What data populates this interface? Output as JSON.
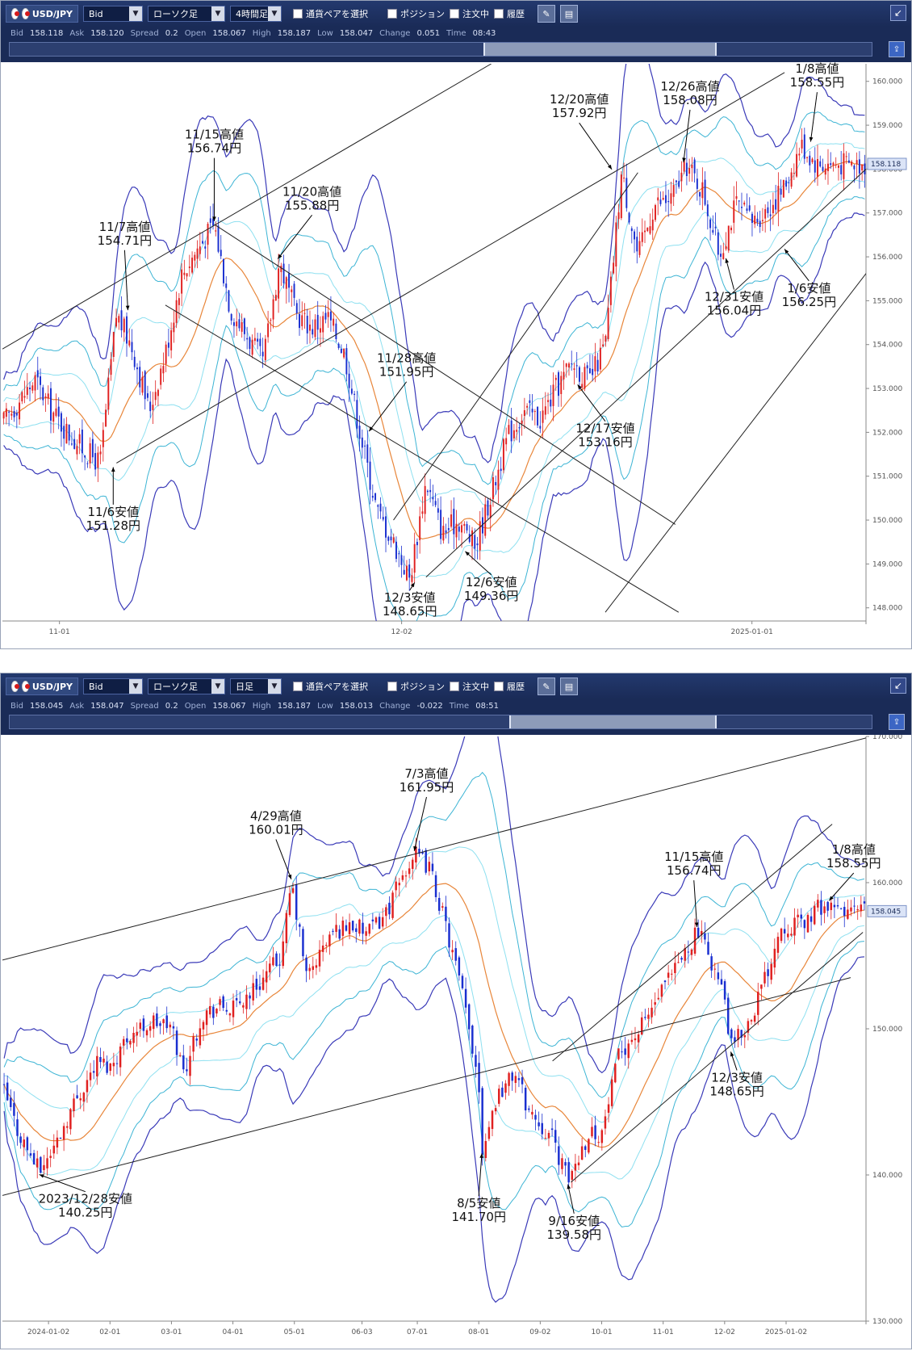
{
  "top": {
    "toolbar": {
      "symbol": "USD/JPY",
      "price_type": "Bid",
      "chart_type": "ローソク足",
      "timeframe": "4時間足",
      "pair_select": "通貨ペアを選択",
      "positions": "ポジション",
      "orders": "注文中",
      "history": "履歴"
    },
    "quote": {
      "bid_label": "Bid",
      "bid": "158.118",
      "ask_label": "Ask",
      "ask": "158.120",
      "spread_label": "Spread",
      "spread": "0.2",
      "open_label": "Open",
      "open": "158.067",
      "high_label": "High",
      "high": "158.187",
      "low_label": "Low",
      "low": "158.047",
      "change_label": "Change",
      "change": "0.051",
      "time_label": "Time",
      "time": "08:43"
    },
    "nav_window": [
      0.55,
      0.82
    ],
    "current_price": "158.118"
  },
  "bottom": {
    "toolbar": {
      "symbol": "USD/JPY",
      "price_type": "Bid",
      "chart_type": "ローソク足",
      "timeframe": "日足",
      "pair_select": "通貨ペアを選択",
      "positions": "ポジション",
      "orders": "注文中",
      "history": "履歴"
    },
    "quote": {
      "bid_label": "Bid",
      "bid": "158.045",
      "ask_label": "Ask",
      "ask": "158.047",
      "spread_label": "Spread",
      "spread": "0.2",
      "open_label": "Open",
      "open": "158.067",
      "high_label": "High",
      "high": "158.187",
      "low_label": "Low",
      "low": "158.013",
      "change_label": "Change",
      "change": "-0.022",
      "time_label": "Time",
      "time": "08:51"
    },
    "nav_window": [
      0.58,
      0.82
    ],
    "current_price": "158.045"
  },
  "colors": {
    "bull": "#e02020",
    "bear": "#1a2fd0",
    "band_outer": "#3a3ab8",
    "band_mid": "#3cb4d4",
    "band_inner": "#8ee0f0",
    "ma": "#e8863a",
    "trendline": "#222222"
  },
  "chart_data": [
    {
      "type": "candlestick",
      "timeframe": "4時間足",
      "ylim": [
        147.7,
        160.4
      ],
      "yticks": [
        "160.000",
        "159.000",
        "158.000",
        "157.000",
        "156.000",
        "155.000",
        "154.000",
        "153.000",
        "152.000",
        "151.000",
        "150.000",
        "149.000",
        "148.000"
      ],
      "xticks": [
        {
          "label": "11-01",
          "x": 3.5
        },
        {
          "label": "12-02",
          "x": 24.5
        },
        {
          "label": "2025-01-01",
          "x": 46
        }
      ],
      "x_range": [
        0,
        53
      ],
      "path": [
        [
          0,
          152.2
        ],
        [
          2,
          153.2
        ],
        [
          3,
          152.5
        ],
        [
          4,
          152.0
        ],
        [
          5,
          151.6
        ],
        [
          6,
          151.3
        ],
        [
          7,
          154.7
        ],
        [
          8,
          153.9
        ],
        [
          9,
          152.5
        ],
        [
          10,
          153.8
        ],
        [
          11,
          155.6
        ],
        [
          12,
          156.2
        ],
        [
          13,
          156.74
        ],
        [
          14,
          154.8
        ],
        [
          15,
          154.2
        ],
        [
          16,
          153.6
        ],
        [
          17,
          155.88
        ],
        [
          18,
          154.7
        ],
        [
          19,
          154.4
        ],
        [
          20,
          154.6
        ],
        [
          21,
          153.8
        ],
        [
          22,
          151.9
        ],
        [
          23,
          150.2
        ],
        [
          24,
          149.5
        ],
        [
          25,
          148.65
        ],
        [
          26,
          150.9
        ],
        [
          27,
          149.7
        ],
        [
          28,
          150.0
        ],
        [
          29,
          149.4
        ],
        [
          30,
          150.6
        ],
        [
          31,
          151.9
        ],
        [
          32,
          152.5
        ],
        [
          33,
          152.3
        ],
        [
          34,
          153.0
        ],
        [
          35,
          153.6
        ],
        [
          36,
          153.16
        ],
        [
          37,
          154.0
        ],
        [
          38,
          157.92
        ],
        [
          39,
          156.0
        ],
        [
          40,
          157.2
        ],
        [
          41,
          157.3
        ],
        [
          42,
          158.08
        ],
        [
          43,
          157.5
        ],
        [
          44,
          156.04
        ],
        [
          45,
          157.2
        ],
        [
          46,
          156.8
        ],
        [
          47,
          157.1
        ],
        [
          48,
          157.6
        ],
        [
          49,
          158.55
        ],
        [
          50,
          158.1
        ],
        [
          51,
          158.118
        ]
      ],
      "trendlines": [
        [
          [
            0,
            153.9
          ],
          [
            30,
            160.4
          ]
        ],
        [
          [
            7,
            151.3
          ],
          [
            48,
            160.2
          ]
        ],
        [
          [
            10,
            154.9
          ],
          [
            41.5,
            147.9
          ]
        ],
        [
          [
            13,
            156.74
          ],
          [
            41.3,
            149.9
          ]
        ],
        [
          [
            24,
            150.0
          ],
          [
            39,
            157.92
          ]
        ],
        [
          [
            26,
            148.7
          ],
          [
            53,
            158.0
          ]
        ],
        [
          [
            37,
            147.9
          ],
          [
            54,
            156.1
          ]
        ]
      ],
      "annotations": [
        {
          "text": [
            "11/15高値",
            "156.74円"
          ],
          "x": 13,
          "price": 156.74,
          "label_x": 13,
          "label_price": 158.4
        },
        {
          "text": [
            "11/7高値",
            "154.71円"
          ],
          "x": 7.7,
          "price": 154.71,
          "label_x": 7.5,
          "label_price": 156.3
        },
        {
          "text": [
            "11/20高値",
            "155.88円"
          ],
          "x": 16.9,
          "price": 155.88,
          "label_x": 19,
          "label_price": 157.1
        },
        {
          "text": [
            "11/6安値",
            "151.28円"
          ],
          "x": 6.8,
          "price": 151.28,
          "label_x": 6.8,
          "label_price": 149.8
        },
        {
          "text": [
            "11/28高値",
            "151.95円"
          ],
          "x": 22.5,
          "price": 151.95,
          "label_x": 24.8,
          "label_price": 153.3
        },
        {
          "text": [
            "12/3安値",
            "148.65円"
          ],
          "x": 25.3,
          "price": 148.65,
          "label_x": 25,
          "label_price": 147.85
        },
        {
          "text": [
            "12/6安値",
            "149.36円"
          ],
          "x": 28.4,
          "price": 149.36,
          "label_x": 30,
          "label_price": 148.2
        },
        {
          "text": [
            "12/17安値",
            "153.16円"
          ],
          "x": 35.3,
          "price": 153.16,
          "label_x": 37,
          "label_price": 151.7
        },
        {
          "text": [
            "12/20高値",
            "157.92円"
          ],
          "x": 37.4,
          "price": 157.92,
          "label_x": 35.4,
          "label_price": 159.2
        },
        {
          "text": [
            "12/26高値",
            "158.08円"
          ],
          "x": 41.8,
          "price": 158.08,
          "label_x": 42.2,
          "label_price": 159.5
        },
        {
          "text": [
            "12/31安値",
            "156.04円"
          ],
          "x": 44.4,
          "price": 156.04,
          "label_x": 44.9,
          "label_price": 154.7
        },
        {
          "text": [
            "1/8高値",
            "158.55円"
          ],
          "x": 49.6,
          "price": 158.55,
          "label_x": 50,
          "label_price": 159.9
        },
        {
          "text": [
            "1/6安値",
            "156.25円"
          ],
          "x": 48.0,
          "price": 156.25,
          "label_x": 49.5,
          "label_price": 154.9
        }
      ]
    },
    {
      "type": "candlestick",
      "timeframe": "日足",
      "ylim": [
        130,
        170
      ],
      "yticks": [
        "170.000",
        "160.000",
        "150.000",
        "140.000",
        "130.000"
      ],
      "xticks": [
        {
          "label": "2024-01-02",
          "x": 1
        },
        {
          "label": "02-01",
          "x": 2
        },
        {
          "label": "03-01",
          "x": 3
        },
        {
          "label": "04-01",
          "x": 4
        },
        {
          "label": "05-01",
          "x": 5
        },
        {
          "label": "06-03",
          "x": 6.1
        },
        {
          "label": "07-01",
          "x": 7
        },
        {
          "label": "08-01",
          "x": 8
        },
        {
          "label": "09-02",
          "x": 9
        },
        {
          "label": "10-01",
          "x": 10
        },
        {
          "label": "11-01",
          "x": 11
        },
        {
          "label": "12-02",
          "x": 12
        },
        {
          "label": "2025-01-02",
          "x": 13
        }
      ],
      "x_range": [
        0.25,
        14.3
      ],
      "path": [
        [
          0.25,
          146.0
        ],
        [
          0.5,
          143.0
        ],
        [
          0.85,
          140.25
        ],
        [
          1.1,
          142.0
        ],
        [
          1.4,
          144.8
        ],
        [
          1.8,
          147.8
        ],
        [
          2.0,
          147.4
        ],
        [
          2.3,
          149.6
        ],
        [
          2.7,
          150.5
        ],
        [
          3.0,
          150.1
        ],
        [
          3.2,
          147.0
        ],
        [
          3.5,
          151.0
        ],
        [
          3.8,
          151.5
        ],
        [
          4.0,
          151.3
        ],
        [
          4.4,
          153.0
        ],
        [
          4.8,
          155.0
        ],
        [
          4.95,
          160.01
        ],
        [
          5.2,
          153.5
        ],
        [
          5.6,
          156.5
        ],
        [
          5.9,
          157.2
        ],
        [
          6.2,
          156.5
        ],
        [
          6.5,
          158.0
        ],
        [
          6.8,
          160.8
        ],
        [
          6.95,
          161.95
        ],
        [
          7.2,
          161.0
        ],
        [
          7.4,
          158.0
        ],
        [
          7.7,
          153.0
        ],
        [
          8.0,
          146.5
        ],
        [
          8.05,
          141.7
        ],
        [
          8.3,
          145.5
        ],
        [
          8.6,
          147.0
        ],
        [
          8.8,
          144.5
        ],
        [
          9.2,
          142.5
        ],
        [
          9.45,
          139.58
        ],
        [
          9.8,
          143.0
        ],
        [
          10.0,
          142.8
        ],
        [
          10.3,
          148.5
        ],
        [
          10.6,
          149.8
        ],
        [
          10.9,
          152.0
        ],
        [
          11.2,
          154.0
        ],
        [
          11.55,
          156.74
        ],
        [
          11.8,
          154.5
        ],
        [
          12.0,
          152.0
        ],
        [
          12.1,
          148.65
        ],
        [
          12.4,
          150.5
        ],
        [
          12.7,
          154.0
        ],
        [
          12.9,
          157.0
        ],
        [
          13.3,
          157.3
        ],
        [
          13.6,
          158.55
        ],
        [
          13.7,
          158.045
        ]
      ],
      "trendlines": [
        [
          [
            0.25,
            154.7
          ],
          [
            14.3,
            169.9
          ]
        ],
        [
          [
            0.25,
            138.6
          ],
          [
            14.05,
            153.5
          ]
        ],
        [
          [
            9.2,
            147.8
          ],
          [
            13.75,
            164.0
          ]
        ],
        [
          [
            9.5,
            139.5
          ],
          [
            14.25,
            156.6
          ]
        ]
      ],
      "annotations": [
        {
          "text": [
            "4/29高値",
            "160.01円"
          ],
          "x": 4.95,
          "price": 160.01,
          "label_x": 4.7,
          "label_price": 163.4
        },
        {
          "text": [
            "7/3高値",
            "161.95円"
          ],
          "x": 6.95,
          "price": 161.95,
          "label_x": 7.15,
          "label_price": 166.3
        },
        {
          "text": [
            "11/15高値",
            "156.74円"
          ],
          "x": 11.55,
          "price": 156.74,
          "label_x": 11.5,
          "label_price": 160.6
        },
        {
          "text": [
            "1/8高値",
            "158.55円"
          ],
          "x": 13.7,
          "price": 158.55,
          "label_x": 14.1,
          "label_price": 161.1
        },
        {
          "text": [
            "2023/12/28安値",
            "140.25円"
          ],
          "x": 0.85,
          "price": 140.25,
          "label_x": 1.6,
          "label_price": 137.2
        },
        {
          "text": [
            "8/5安値",
            "141.70円"
          ],
          "x": 8.05,
          "price": 141.7,
          "label_x": 8.0,
          "label_price": 136.9
        },
        {
          "text": [
            "9/16安値",
            "139.58円"
          ],
          "x": 9.45,
          "price": 139.58,
          "label_x": 9.55,
          "label_price": 135.7
        },
        {
          "text": [
            "12/3安値",
            "148.65円"
          ],
          "x": 12.1,
          "price": 148.65,
          "label_x": 12.2,
          "label_price": 145.5
        }
      ]
    }
  ]
}
